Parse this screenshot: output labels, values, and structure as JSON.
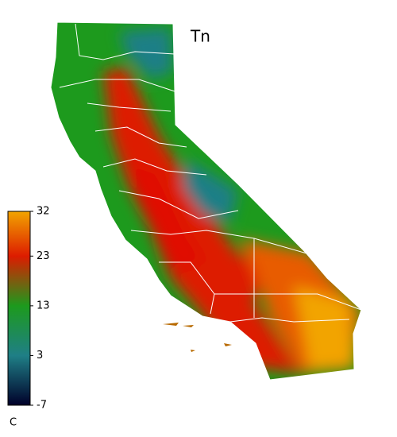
{
  "map": {
    "title": "Tn",
    "colorbar": {
      "lim": [
        -7,
        32
      ],
      "ticks": [
        -7,
        3,
        13,
        23,
        32
      ],
      "unit": "C",
      "stops": [
        {
          "value": -7,
          "color": "#00002a"
        },
        {
          "value": 3,
          "color": "#1f7f86"
        },
        {
          "value": 13,
          "color": "#1d9a1d"
        },
        {
          "value": 23,
          "color": "#dd1c00"
        },
        {
          "value": 32,
          "color": "#f2a400"
        }
      ]
    }
  }
}
